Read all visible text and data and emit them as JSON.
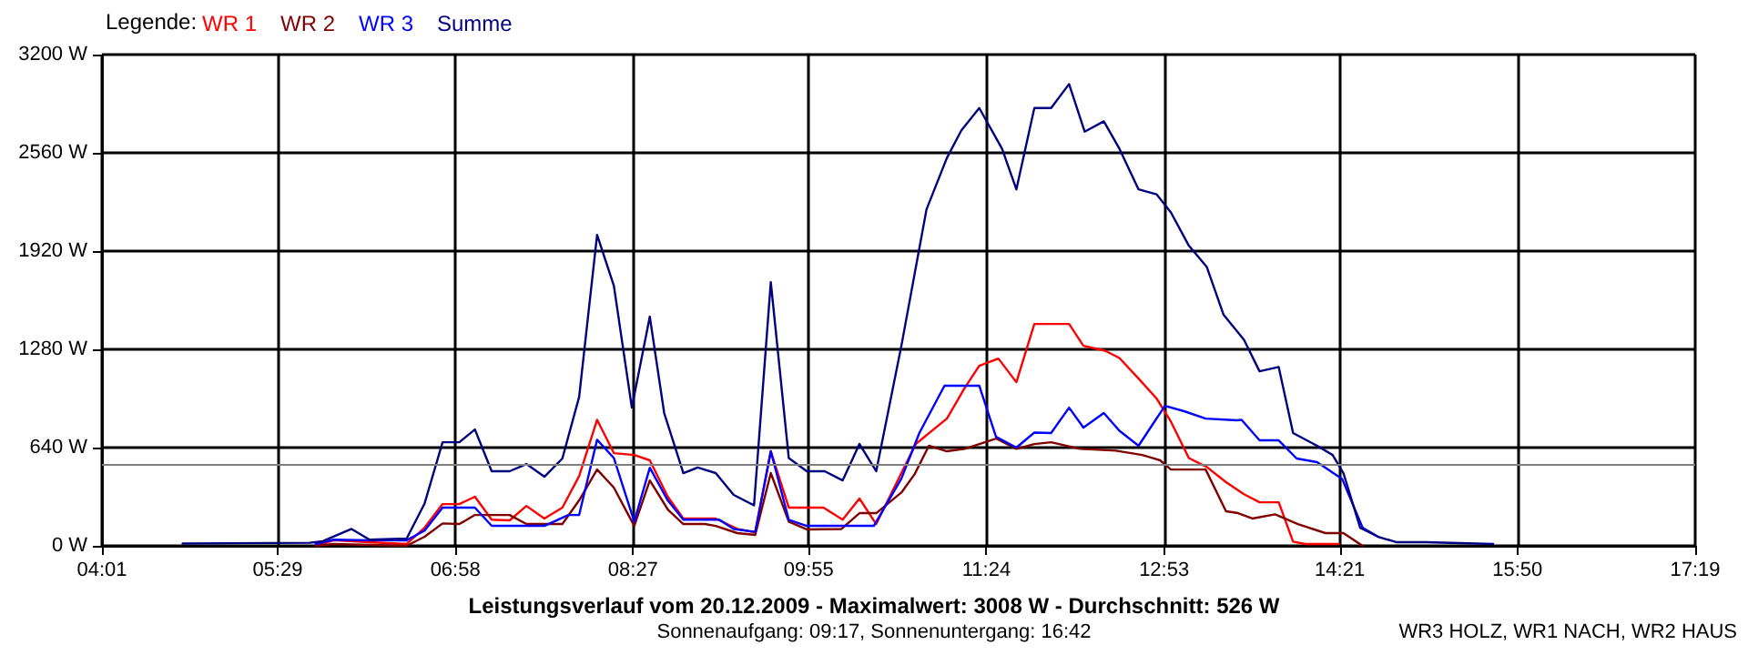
{
  "chart_data": {
    "type": "line",
    "title": "Leistungsverlauf vom 20.12.2009 - Maximalwert: 3008 W - Durchschnitt: 526 W",
    "subtitle": "Sonnenaufgang: 09:17, Sonnenuntergang: 16:42",
    "legend_title": "Legende:",
    "annotations": [
      "WR3 HOLZ, WR1 NACH, WR2 HAUS"
    ],
    "xlim": [
      4.0167,
      17.3167
    ],
    "xticks": [
      {
        "value": 4.0167,
        "label": "04:01"
      },
      {
        "value": 5.4833,
        "label": "05:29"
      },
      {
        "value": 6.9667,
        "label": "06:58"
      },
      {
        "value": 8.45,
        "label": "08:27"
      },
      {
        "value": 9.9167,
        "label": "09:55"
      },
      {
        "value": 11.4,
        "label": "11:24"
      },
      {
        "value": 12.8833,
        "label": "12:53"
      },
      {
        "value": 14.35,
        "label": "14:21"
      },
      {
        "value": 15.8333,
        "label": "15:50"
      },
      {
        "value": 17.3167,
        "label": "17:19"
      }
    ],
    "ylim": [
      0,
      3200
    ],
    "yticks": [
      {
        "value": 0,
        "label": "0 W"
      },
      {
        "value": 640,
        "label": "640 W"
      },
      {
        "value": 1280,
        "label": "1280 W"
      },
      {
        "value": 1920,
        "label": "1920 W"
      },
      {
        "value": 2560,
        "label": "2560 W"
      },
      {
        "value": 3200,
        "label": "3200 W"
      }
    ],
    "grid": true,
    "legend": "top left",
    "marker": "none",
    "line_style": "solid",
    "ref_lines": [
      {
        "axis": "y",
        "value": 526,
        "color": "#808080"
      }
    ],
    "series": [
      {
        "name": "WR 1",
        "color": "#ff0000",
        "x": [
          5.8,
          5.95,
          6.25,
          6.56,
          6.71,
          6.86,
          7.0,
          7.13,
          7.27,
          7.42,
          7.56,
          7.71,
          7.86,
          8.0,
          8.15,
          8.29,
          8.46,
          8.59,
          8.74,
          8.87,
          9.14,
          9.32,
          9.47,
          9.6,
          9.75,
          10.04,
          10.2,
          10.34,
          10.48,
          10.69,
          10.81,
          11.07,
          11.22,
          11.34,
          11.5,
          11.65,
          11.8,
          12.09,
          12.21,
          12.39,
          12.51,
          12.67,
          12.82,
          12.94,
          13.09,
          13.24,
          13.4,
          13.55,
          13.68,
          13.84,
          13.96,
          14.06,
          14.34
        ],
        "values": [
          0,
          36,
          24,
          12,
          118,
          272,
          272,
          320,
          170,
          166,
          260,
          178,
          249,
          454,
          821,
          604,
          592,
          557,
          320,
          178,
          178,
          110,
          87,
          616,
          249,
          249,
          170,
          308,
          142,
          474,
          663,
          829,
          1030,
          1173,
          1220,
          1066,
          1445,
          1445,
          1303,
          1271,
          1224,
          1090,
          960,
          809,
          572,
          513,
          415,
          336,
          284,
          284,
          27,
          12,
          12
        ]
      },
      {
        "name": "WR 2",
        "color": "#800000",
        "x": [
          5.8,
          5.95,
          6.56,
          6.71,
          6.86,
          7.0,
          7.13,
          7.42,
          7.56,
          7.86,
          8.0,
          8.15,
          8.29,
          8.46,
          8.59,
          8.74,
          8.87,
          9.05,
          9.14,
          9.32,
          9.47,
          9.6,
          9.75,
          9.9,
          10.19,
          10.34,
          10.48,
          10.69,
          10.8,
          10.92,
          11.07,
          11.22,
          11.48,
          11.65,
          11.8,
          11.94,
          12.18,
          12.48,
          12.7,
          12.85,
          12.94,
          13.23,
          13.4,
          13.5,
          13.62,
          13.81,
          14.0,
          14.23,
          14.38,
          14.54
        ],
        "values": [
          0,
          12,
          0,
          59,
          146,
          142,
          201,
          201,
          142,
          142,
          296,
          497,
          379,
          130,
          426,
          237,
          142,
          142,
          130,
          83,
          71,
          474,
          158,
          107,
          110,
          213,
          213,
          347,
          466,
          652,
          616,
          632,
          699,
          632,
          663,
          675,
          632,
          620,
          592,
          557,
          497,
          497,
          225,
          213,
          178,
          205,
          142,
          83,
          83,
          0
        ]
      },
      {
        "name": "WR 3",
        "color": "#0000ff",
        "x": [
          5.8,
          5.95,
          6.25,
          6.56,
          6.71,
          6.86,
          7.13,
          7.27,
          7.71,
          7.91,
          8.0,
          8.15,
          8.29,
          8.46,
          8.59,
          8.74,
          8.87,
          9.17,
          9.29,
          9.47,
          9.6,
          9.75,
          9.9,
          10.46,
          10.69,
          10.84,
          11.05,
          11.34,
          11.48,
          11.65,
          11.8,
          11.94,
          12.09,
          12.21,
          12.38,
          12.51,
          12.67,
          12.89,
          13.05,
          13.23,
          13.49,
          13.53,
          13.68,
          13.84,
          13.99,
          14.16,
          14.37,
          14.54,
          14.67
        ],
        "values": [
          12,
          40,
          36,
          36,
          99,
          249,
          249,
          130,
          130,
          201,
          201,
          691,
          572,
          158,
          509,
          296,
          170,
          170,
          110,
          91,
          616,
          170,
          130,
          130,
          438,
          735,
          1043,
          1043,
          711,
          640,
          738,
          735,
          900,
          770,
          865,
          750,
          652,
          912,
          877,
          829,
          818,
          821,
          687,
          687,
          569,
          545,
          435,
          118,
          59
        ]
      },
      {
        "name": "Summe",
        "color": "#000080",
        "x": [
          4.69,
          5.75,
          5.86,
          6.1,
          6.25,
          6.56,
          6.71,
          6.86,
          7.0,
          7.13,
          7.27,
          7.42,
          7.56,
          7.71,
          7.86,
          8.0,
          8.15,
          8.29,
          8.44,
          8.59,
          8.71,
          8.87,
          8.99,
          9.14,
          9.29,
          9.46,
          9.6,
          9.75,
          9.9,
          10.05,
          10.2,
          10.34,
          10.48,
          10.69,
          10.9,
          11.07,
          11.19,
          11.34,
          11.53,
          11.65,
          11.8,
          11.94,
          12.09,
          12.22,
          12.38,
          12.51,
          12.67,
          12.82,
          12.94,
          13.09,
          13.24,
          13.38,
          13.55,
          13.68,
          13.84,
          13.96,
          14.16,
          14.29,
          14.38,
          14.52,
          14.67,
          14.82,
          15.07,
          15.63
        ],
        "values": [
          15,
          20,
          30,
          110,
          40,
          47,
          276,
          675,
          675,
          758,
          486,
          486,
          533,
          450,
          569,
          970,
          2026,
          1694,
          900,
          1493,
          865,
          474,
          510,
          474,
          332,
          264,
          1718,
          572,
          486,
          486,
          426,
          663,
          486,
          1303,
          2192,
          2527,
          2705,
          2852,
          2587,
          2322,
          2852,
          2852,
          3008,
          2698,
          2765,
          2587,
          2322,
          2290,
          2172,
          1955,
          1816,
          1505,
          1342,
          1137,
          1165,
          735,
          652,
          592,
          474,
          118,
          59,
          24,
          24,
          12
        ]
      }
    ]
  }
}
